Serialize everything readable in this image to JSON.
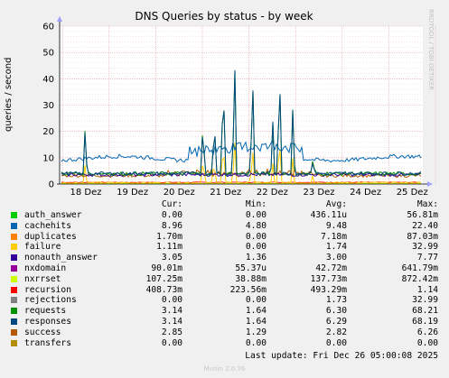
{
  "chart_data": {
    "type": "line",
    "title": "DNS Queries by status - by week",
    "ylabel": "queries / second",
    "side_label": "RRDTOOL / TOBI OETIKER",
    "yticks": [
      0,
      10,
      20,
      30,
      40,
      50,
      60
    ],
    "ylim": [
      0,
      60
    ],
    "xticks": [
      "18 Dez",
      "19 Dez",
      "20 Dez",
      "21 Dez",
      "22 Dez",
      "23 Dez",
      "24 Dez",
      "25 Dez"
    ],
    "grid": true,
    "series": [
      {
        "name": "auth_answer",
        "color": "#00cc00"
      },
      {
        "name": "cachehits",
        "color": "#0066b3"
      },
      {
        "name": "duplicates",
        "color": "#ff8000"
      },
      {
        "name": "failure",
        "color": "#ffcc00"
      },
      {
        "name": "nonauth_answer",
        "color": "#330099"
      },
      {
        "name": "nxdomain",
        "color": "#990099"
      },
      {
        "name": "nxrrset",
        "color": "#ccff00"
      },
      {
        "name": "recursion",
        "color": "#ff0000"
      },
      {
        "name": "rejections",
        "color": "#808080"
      },
      {
        "name": "requests",
        "color": "#008f00"
      },
      {
        "name": "responses",
        "color": "#00487d"
      },
      {
        "name": "success",
        "color": "#b35a00"
      },
      {
        "name": "transfers",
        "color": "#b38f00"
      }
    ],
    "legend_headers": {
      "cur": "Cur:",
      "min": "Min:",
      "avg": "Avg:",
      "max": "Max:"
    },
    "legend_rows": [
      {
        "name": "auth_answer",
        "cur": "0.00",
        "min": "0.00",
        "avg": "436.11u",
        "max": "56.81m"
      },
      {
        "name": "cachehits",
        "cur": "8.96",
        "min": "4.80",
        "avg": "9.48",
        "max": "22.40"
      },
      {
        "name": "duplicates",
        "cur": "1.70m",
        "min": "0.00",
        "avg": "7.18m",
        "max": "87.03m"
      },
      {
        "name": "failure",
        "cur": "1.11m",
        "min": "0.00",
        "avg": "1.74",
        "max": "32.99"
      },
      {
        "name": "nonauth_answer",
        "cur": "3.05",
        "min": "1.36",
        "avg": "3.00",
        "max": "7.77"
      },
      {
        "name": "nxdomain",
        "cur": "90.01m",
        "min": "55.37u",
        "avg": "42.72m",
        "max": "641.79m"
      },
      {
        "name": "nxrrset",
        "cur": "107.25m",
        "min": "38.88m",
        "avg": "137.73m",
        "max": "872.42m"
      },
      {
        "name": "recursion",
        "cur": "408.73m",
        "min": "223.56m",
        "avg": "493.29m",
        "max": "1.14"
      },
      {
        "name": "rejections",
        "cur": "0.00",
        "min": "0.00",
        "avg": "1.73",
        "max": "32.99"
      },
      {
        "name": "requests",
        "cur": "3.14",
        "min": "1.64",
        "avg": "6.30",
        "max": "68.21"
      },
      {
        "name": "responses",
        "cur": "3.14",
        "min": "1.64",
        "avg": "6.29",
        "max": "68.19"
      },
      {
        "name": "success",
        "cur": "2.85",
        "min": "1.29",
        "avg": "2.82",
        "max": "6.26"
      },
      {
        "name": "transfers",
        "cur": "0.00",
        "min": "0.00",
        "avg": "0.00",
        "max": "0.00"
      }
    ],
    "last_update": "Last update: Fri Dec 26 05:00:08 2025",
    "credit": "Munin 2.0.76"
  }
}
